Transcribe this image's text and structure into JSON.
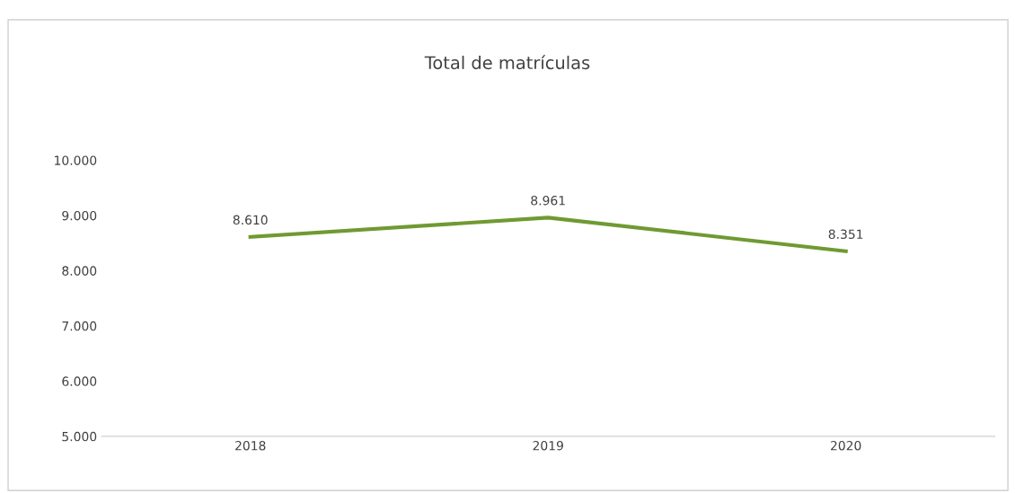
{
  "chart_data": {
    "type": "line",
    "title": "Total de matrículas",
    "categories": [
      "2018",
      "2019",
      "2020"
    ],
    "series": [
      {
        "color": "#6f9a32",
        "values": [
          8610,
          8961,
          8351
        ],
        "value_labels": [
          "8.610",
          "8.961",
          "8.351"
        ]
      }
    ],
    "ylim": [
      5000,
      10000
    ],
    "yticks": [
      {
        "value": 5000,
        "label": "5.000"
      },
      {
        "value": 6000,
        "label": "6.000"
      },
      {
        "value": 7000,
        "label": "7.000"
      },
      {
        "value": 8000,
        "label": "8.000"
      },
      {
        "value": 9000,
        "label": "9.000"
      },
      {
        "value": 10000,
        "label": "10.000"
      }
    ],
    "grid": false,
    "legend": false,
    "marker": "none",
    "line_style": "solid"
  }
}
